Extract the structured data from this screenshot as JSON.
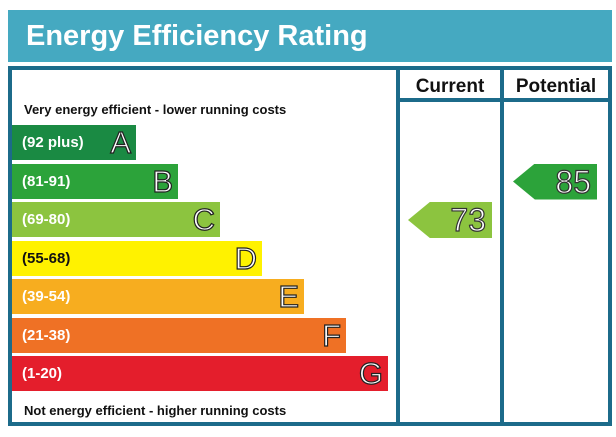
{
  "title": "Energy Efficiency Rating",
  "columns": {
    "current": "Current",
    "potential": "Potential"
  },
  "top_text": "Very energy efficient - lower running costs",
  "bottom_text": "Not energy efficient - higher running costs",
  "chart_data": {
    "type": "bar",
    "title": "Energy Efficiency Rating",
    "bands": [
      {
        "range": "(92 plus)",
        "letter": "A",
        "color": "#1a8a43"
      },
      {
        "range": "(81-91)",
        "letter": "B",
        "color": "#2ca33a"
      },
      {
        "range": "(69-80)",
        "letter": "C",
        "color": "#8cc43f"
      },
      {
        "range": "(55-68)",
        "letter": "D",
        "color": "#fff200"
      },
      {
        "range": "(39-54)",
        "letter": "E",
        "color": "#f7ad1f"
      },
      {
        "range": "(21-38)",
        "letter": "F",
        "color": "#ef7125"
      },
      {
        "range": "(1-20)",
        "letter": "G",
        "color": "#e41e2c"
      }
    ],
    "current": {
      "value": "73",
      "band": "C",
      "color": "#8cc43f"
    },
    "potential": {
      "value": "85",
      "band": "B",
      "color": "#2ca33a"
    }
  }
}
